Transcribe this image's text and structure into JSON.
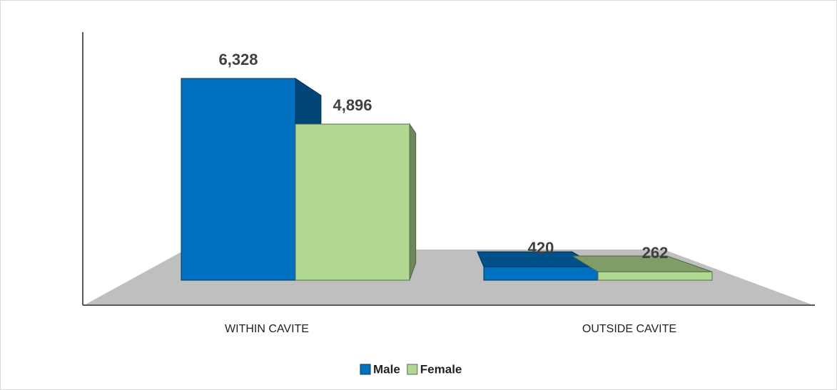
{
  "chart_data": {
    "type": "bar3d",
    "categories": [
      "WITHIN CAVITE",
      "OUTSIDE CAVITE"
    ],
    "series": [
      {
        "name": "Male",
        "color": "#0070c0",
        "values": [
          6328,
          420
        ],
        "value_labels": [
          "6,328",
          "420"
        ]
      },
      {
        "name": "Female",
        "color": "#b1d992",
        "values": [
          4896,
          262
        ],
        "value_labels": [
          "4,896",
          "262"
        ]
      }
    ],
    "legend": "bottom"
  }
}
